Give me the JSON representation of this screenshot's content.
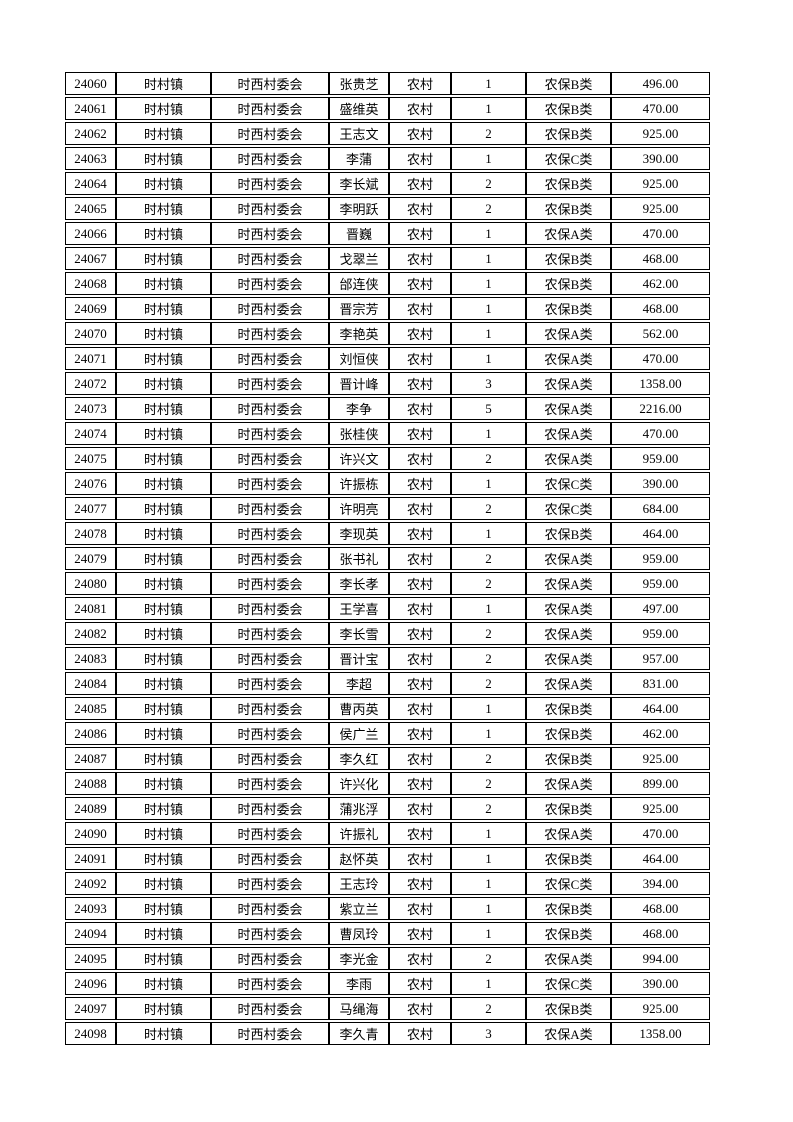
{
  "page": {
    "background_color": "#ffffff",
    "text_color": "#000000",
    "border_color": "#000000"
  },
  "table": {
    "rows": [
      [
        "24060",
        "时村镇",
        "时西村委会",
        "张贵芝",
        "农村",
        "1",
        "农保B类",
        "496.00"
      ],
      [
        "24061",
        "时村镇",
        "时西村委会",
        "盛维英",
        "农村",
        "1",
        "农保B类",
        "470.00"
      ],
      [
        "24062",
        "时村镇",
        "时西村委会",
        "王志文",
        "农村",
        "2",
        "农保B类",
        "925.00"
      ],
      [
        "24063",
        "时村镇",
        "时西村委会",
        "李蒲",
        "农村",
        "1",
        "农保C类",
        "390.00"
      ],
      [
        "24064",
        "时村镇",
        "时西村委会",
        "李长斌",
        "农村",
        "2",
        "农保B类",
        "925.00"
      ],
      [
        "24065",
        "时村镇",
        "时西村委会",
        "李明跃",
        "农村",
        "2",
        "农保B类",
        "925.00"
      ],
      [
        "24066",
        "时村镇",
        "时西村委会",
        "晋巍",
        "农村",
        "1",
        "农保A类",
        "470.00"
      ],
      [
        "24067",
        "时村镇",
        "时西村委会",
        "戈翠兰",
        "农村",
        "1",
        "农保B类",
        "468.00"
      ],
      [
        "24068",
        "时村镇",
        "时西村委会",
        "邰连侠",
        "农村",
        "1",
        "农保B类",
        "462.00"
      ],
      [
        "24069",
        "时村镇",
        "时西村委会",
        "晋宗芳",
        "农村",
        "1",
        "农保B类",
        "468.00"
      ],
      [
        "24070",
        "时村镇",
        "时西村委会",
        "李艳英",
        "农村",
        "1",
        "农保A类",
        "562.00"
      ],
      [
        "24071",
        "时村镇",
        "时西村委会",
        "刘恒侠",
        "农村",
        "1",
        "农保A类",
        "470.00"
      ],
      [
        "24072",
        "时村镇",
        "时西村委会",
        "晋计峰",
        "农村",
        "3",
        "农保A类",
        "1358.00"
      ],
      [
        "24073",
        "时村镇",
        "时西村委会",
        "李争",
        "农村",
        "5",
        "农保A类",
        "2216.00"
      ],
      [
        "24074",
        "时村镇",
        "时西村委会",
        "张桂侠",
        "农村",
        "1",
        "农保A类",
        "470.00"
      ],
      [
        "24075",
        "时村镇",
        "时西村委会",
        "许兴文",
        "农村",
        "2",
        "农保A类",
        "959.00"
      ],
      [
        "24076",
        "时村镇",
        "时西村委会",
        "许振栋",
        "农村",
        "1",
        "农保C类",
        "390.00"
      ],
      [
        "24077",
        "时村镇",
        "时西村委会",
        "许明亮",
        "农村",
        "2",
        "农保C类",
        "684.00"
      ],
      [
        "24078",
        "时村镇",
        "时西村委会",
        "李现英",
        "农村",
        "1",
        "农保B类",
        "464.00"
      ],
      [
        "24079",
        "时村镇",
        "时西村委会",
        "张书礼",
        "农村",
        "2",
        "农保A类",
        "959.00"
      ],
      [
        "24080",
        "时村镇",
        "时西村委会",
        "李长孝",
        "农村",
        "2",
        "农保A类",
        "959.00"
      ],
      [
        "24081",
        "时村镇",
        "时西村委会",
        "王学喜",
        "农村",
        "1",
        "农保A类",
        "497.00"
      ],
      [
        "24082",
        "时村镇",
        "时西村委会",
        "李长雪",
        "农村",
        "2",
        "农保A类",
        "959.00"
      ],
      [
        "24083",
        "时村镇",
        "时西村委会",
        "晋计宝",
        "农村",
        "2",
        "农保A类",
        "957.00"
      ],
      [
        "24084",
        "时村镇",
        "时西村委会",
        "李超",
        "农村",
        "2",
        "农保A类",
        "831.00"
      ],
      [
        "24085",
        "时村镇",
        "时西村委会",
        "曹丙英",
        "农村",
        "1",
        "农保B类",
        "464.00"
      ],
      [
        "24086",
        "时村镇",
        "时西村委会",
        "侯广兰",
        "农村",
        "1",
        "农保B类",
        "462.00"
      ],
      [
        "24087",
        "时村镇",
        "时西村委会",
        "李久红",
        "农村",
        "2",
        "农保B类",
        "925.00"
      ],
      [
        "24088",
        "时村镇",
        "时西村委会",
        "许兴化",
        "农村",
        "2",
        "农保A类",
        "899.00"
      ],
      [
        "24089",
        "时村镇",
        "时西村委会",
        "蒲兆浮",
        "农村",
        "2",
        "农保B类",
        "925.00"
      ],
      [
        "24090",
        "时村镇",
        "时西村委会",
        "许振礼",
        "农村",
        "1",
        "农保A类",
        "470.00"
      ],
      [
        "24091",
        "时村镇",
        "时西村委会",
        "赵怀英",
        "农村",
        "1",
        "农保B类",
        "464.00"
      ],
      [
        "24092",
        "时村镇",
        "时西村委会",
        "王志玲",
        "农村",
        "1",
        "农保C类",
        "394.00"
      ],
      [
        "24093",
        "时村镇",
        "时西村委会",
        "紫立兰",
        "农村",
        "1",
        "农保B类",
        "468.00"
      ],
      [
        "24094",
        "时村镇",
        "时西村委会",
        "曹凤玲",
        "农村",
        "1",
        "农保B类",
        "468.00"
      ],
      [
        "24095",
        "时村镇",
        "时西村委会",
        "李光金",
        "农村",
        "2",
        "农保A类",
        "994.00"
      ],
      [
        "24096",
        "时村镇",
        "时西村委会",
        "李雨",
        "农村",
        "1",
        "农保C类",
        "390.00"
      ],
      [
        "24097",
        "时村镇",
        "时西村委会",
        "马绳海",
        "农村",
        "2",
        "农保B类",
        "925.00"
      ],
      [
        "24098",
        "时村镇",
        "时西村委会",
        "李久青",
        "农村",
        "3",
        "农保A类",
        "1358.00"
      ]
    ]
  }
}
